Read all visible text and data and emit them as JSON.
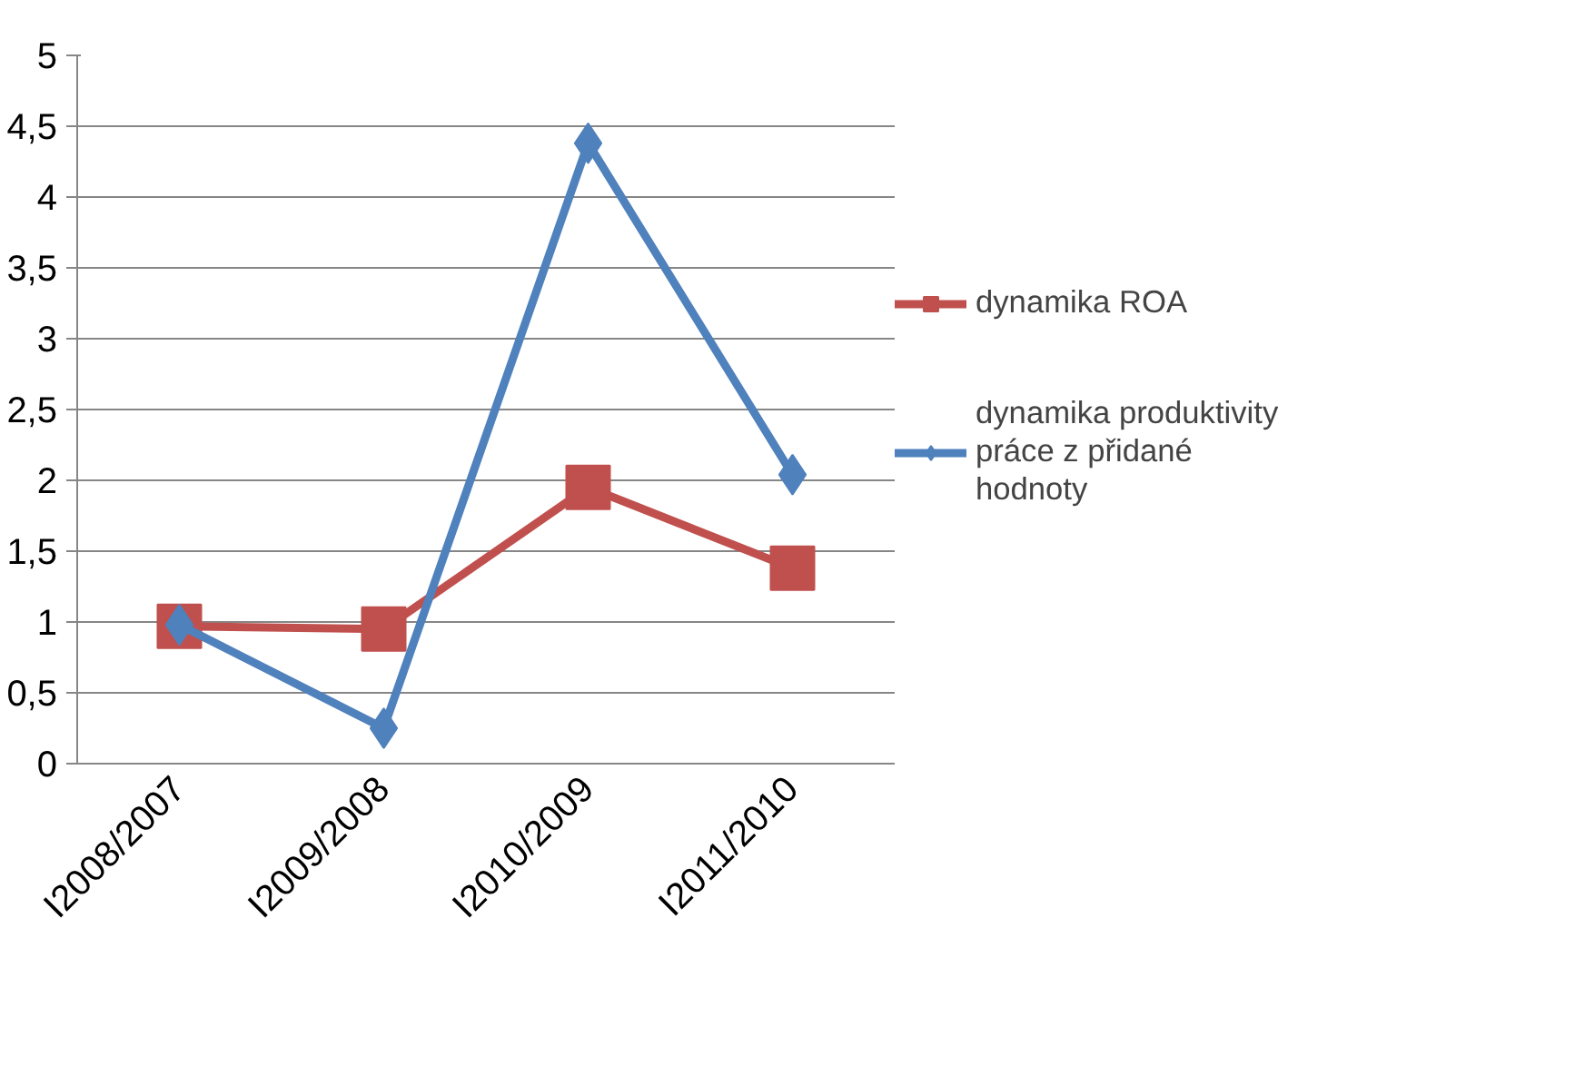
{
  "chart_data": {
    "type": "line",
    "categories": [
      "I2008/2007",
      "I2009/2008",
      "I2010/2009",
      "I2011/2010"
    ],
    "series": [
      {
        "name": "dynamika ROA",
        "color": "#c0504d",
        "marker": "square",
        "values": [
          0.97,
          0.95,
          1.95,
          1.38
        ]
      },
      {
        "name": "dynamika produktivity práce z přidané hodnoty",
        "color": "#4f81bd",
        "marker": "diamond",
        "values": [
          0.98,
          0.25,
          4.38,
          2.04
        ]
      }
    ],
    "ylim": [
      0,
      5
    ],
    "yticks": [
      0,
      {
        "value": 0.5,
        "label": "0,5"
      },
      1,
      {
        "value": 1.5,
        "label": "1,5"
      },
      2,
      {
        "value": 2.5,
        "label": "2,5"
      },
      3,
      {
        "value": 3.5,
        "label": "3,5"
      },
      4,
      {
        "value": 4.5,
        "label": "4,5"
      },
      5
    ],
    "grid": "y",
    "legend": "right",
    "line_style": "solid"
  }
}
